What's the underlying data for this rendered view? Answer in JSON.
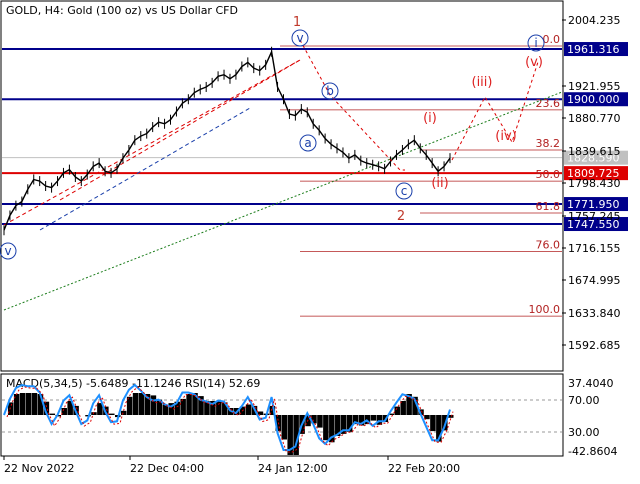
{
  "header": {
    "title": "GOLD, H4:  Gold (100 oz) vs US Dollar CFD"
  },
  "indicator": {
    "title": "MACD(5,34,5) -5.6489 -11.1246 RSI(14) 52.69",
    "axis_labels": [
      "37.4040",
      "70.00",
      "30.00",
      "-42.8604"
    ]
  },
  "chart_data": [
    {
      "type": "line",
      "title": "GOLD, H4:  Gold (100 oz) vs US Dollar CFD",
      "x_tick_labels": [
        "22 Nov 2022",
        "22 Dec 04:00",
        "24 Jan 12:00",
        "22 Feb 20:00"
      ],
      "y_tick_labels": [
        "2004.235",
        "1921.955",
        "1880.770",
        "1839.615",
        "1798.430",
        "1757.245",
        "1716.155",
        "1674.995",
        "1633.840",
        "1592.685"
      ],
      "ylim": [
        1568,
        2020
      ],
      "series": [
        {
          "values": [
            1740,
            1758,
            1770,
            1775,
            1790,
            1802,
            1800,
            1794,
            1792,
            1800,
            1810,
            1814,
            1805,
            1800,
            1808,
            1818,
            1822,
            1812,
            1810,
            1815,
            1828,
            1838,
            1850,
            1855,
            1858,
            1866,
            1872,
            1870,
            1875,
            1885,
            1895,
            1900,
            1908,
            1912,
            1915,
            1920,
            1928,
            1930,
            1925,
            1930,
            1940,
            1945,
            1938,
            1935,
            1942,
            1958,
            1915,
            1900,
            1882,
            1880,
            1888,
            1884,
            1870,
            1862,
            1852,
            1845,
            1840,
            1835,
            1828,
            1832,
            1825,
            1822,
            1820,
            1818,
            1815,
            1824,
            1832,
            1838,
            1845,
            1850,
            1840,
            1832,
            1822,
            1812,
            1818,
            1828
          ]
        }
      ],
      "horizontal_levels": [
        {
          "value": 1961.316,
          "label": "1961.316",
          "color": "#00008b"
        },
        {
          "value": 1900.0,
          "label": "1900.000",
          "color": "#00008b"
        },
        {
          "value": 1828.59,
          "label": "1828.590",
          "color": "#c0c0c0"
        },
        {
          "value": 1809.725,
          "label": "1809.725",
          "color": "#dd0000"
        },
        {
          "value": 1771.95,
          "label": "1771.950",
          "color": "#00008b"
        },
        {
          "value": 1747.55,
          "label": "1747.550",
          "color": "#00008b"
        }
      ],
      "fibonacci": [
        {
          "label": "0.0",
          "value": 1965
        },
        {
          "label": "23.6",
          "value": 1887
        },
        {
          "label": "38.2",
          "value": 1838
        },
        {
          "label": "50.0",
          "value": 1800
        },
        {
          "label": "61.8",
          "value": 1761
        },
        {
          "label": "76.0",
          "value": 1714
        },
        {
          "label": "100.0",
          "value": 1635
        }
      ],
      "wave_labels": [
        {
          "text": "1",
          "color": "#c0392b",
          "style": "plain"
        },
        {
          "text": "2",
          "color": "#c0392b",
          "style": "plain"
        },
        {
          "text": "v",
          "color": "#1a3faa",
          "style": "circle"
        },
        {
          "text": "a",
          "color": "#1a3faa",
          "style": "circle"
        },
        {
          "text": "b",
          "color": "#1a3faa",
          "style": "circle"
        },
        {
          "text": "c",
          "color": "#1a3faa",
          "style": "circle"
        },
        {
          "text": "v",
          "color": "#1a3faa",
          "style": "circle"
        },
        {
          "text": "i",
          "color": "#1a3faa",
          "style": "circle"
        },
        {
          "text": "(i)",
          "color": "#dd2222",
          "style": "plain"
        },
        {
          "text": "(ii)",
          "color": "#dd2222",
          "style": "plain"
        },
        {
          "text": "(iii)",
          "color": "#dd2222",
          "style": "plain"
        },
        {
          "text": "(iv)",
          "color": "#dd2222",
          "style": "plain"
        },
        {
          "text": "(v)",
          "color": "#dd2222",
          "style": "plain"
        }
      ],
      "grid": false
    }
  ]
}
